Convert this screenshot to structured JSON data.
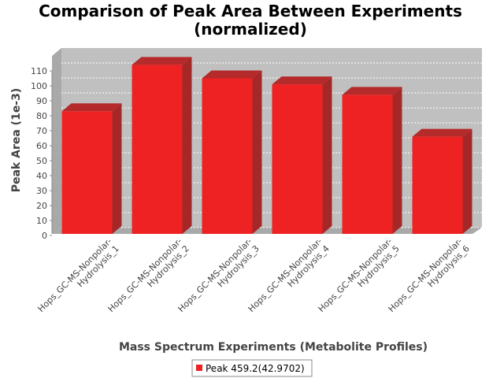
{
  "chart_data": {
    "type": "bar",
    "title_lines": [
      "Comparison of Peak Area Between Experiments",
      "(normalized)"
    ],
    "xlabel": "Mass Spectrum Experiments (Metabolite Profiles)",
    "ylabel": "Peak Area (1e-3)",
    "categories": [
      [
        "Hops_GC-MS-Nonpolar-",
        "Hydrolysis_1"
      ],
      [
        "Hops_GC-MS-Nonpolar-",
        "Hydrolysis_2"
      ],
      [
        "Hops_GC-MS-Nonpolar-",
        "Hydrolysis_3"
      ],
      [
        "Hops_GC-MS-Nonpolar-",
        "Hydrolysis_4"
      ],
      [
        "Hops_GC-MS-Nonpolar-",
        "Hydrolysis_5"
      ],
      [
        "Hops_GC-MS-Nonpolar-",
        "Hydrolysis_6"
      ]
    ],
    "series": [
      {
        "name": "Peak 459.2(42.9702)",
        "values": [
          83,
          114,
          105,
          101,
          94,
          66
        ],
        "color": "#ee2222"
      }
    ],
    "yticks": [
      0,
      10,
      20,
      30,
      40,
      50,
      60,
      70,
      80,
      90,
      100,
      110
    ],
    "ylim": [
      0,
      120
    ],
    "grid": true,
    "legend_position": "bottom",
    "colors": {
      "plot_background": "#c0c0c0",
      "bar": "#ee2222"
    }
  }
}
